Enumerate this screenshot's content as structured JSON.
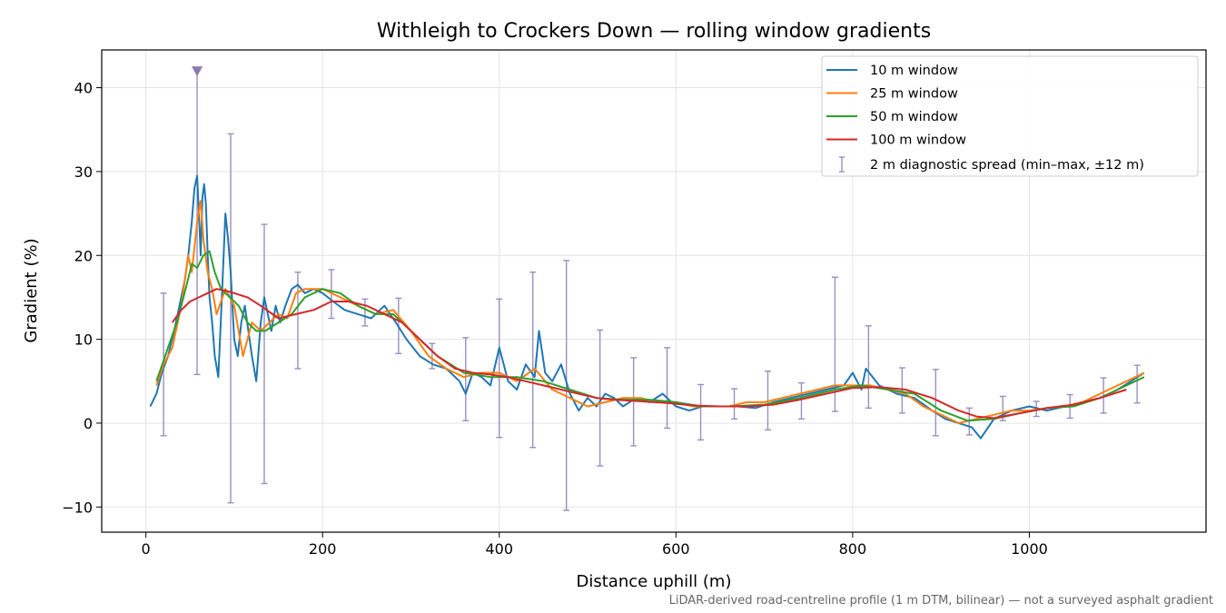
{
  "chart_data": {
    "type": "line",
    "title": "Withleigh to Crockers Down — rolling window gradients",
    "xlabel": "Distance uphill (m)",
    "ylabel": "Gradient (%)",
    "xlim": [
      -50,
      1200
    ],
    "ylim": [
      -13,
      44.5
    ],
    "xticks": [
      0,
      200,
      400,
      600,
      800,
      1000
    ],
    "yticks": [
      -10,
      0,
      10,
      20,
      30,
      40
    ],
    "xtick_labels": [
      "0",
      "200",
      "400",
      "600",
      "800",
      "1000"
    ],
    "ytick_labels": [
      "−10",
      "0",
      "10",
      "20",
      "30",
      "40"
    ],
    "grid": true,
    "legend_position": "top-right",
    "footnote": "LiDAR-derived road-centreline profile (1 m DTM, bilinear) — not a surveyed asphalt gradient",
    "colors": {
      "w10": "#1f77b4",
      "w25": "#ff7f0e",
      "w50": "#2ca02c",
      "w100": "#d62728",
      "errorbar": "#9a8fbf",
      "marker": "#8e7bb0"
    },
    "series": [
      {
        "name": "10 m window",
        "key": "w10",
        "x": [
          5,
          12,
          18,
          25,
          32,
          38,
          44,
          48,
          52,
          55,
          58,
          60,
          62,
          64,
          66,
          68,
          70,
          72,
          75,
          78,
          82,
          86,
          90,
          93,
          96,
          100,
          104,
          108,
          112,
          116,
          120,
          125,
          130,
          134,
          138,
          142,
          147,
          152,
          158,
          165,
          172,
          180,
          190,
          200,
          212,
          225,
          240,
          255,
          270,
          283,
          295,
          310,
          325,
          340,
          355,
          362,
          370,
          380,
          390,
          400,
          410,
          420,
          430,
          440,
          445,
          452,
          460,
          470,
          480,
          490,
          500,
          510,
          520,
          530,
          540,
          555,
          570,
          585,
          600,
          615,
          630,
          650,
          670,
          690,
          710,
          730,
          750,
          770,
          790,
          800,
          810,
          815,
          830,
          850,
          870,
          890,
          905,
          920,
          935,
          945,
          960,
          980,
          1000,
          1020,
          1040,
          1060,
          1080,
          1100,
          1115,
          1130
        ],
        "y": [
          2,
          3.5,
          6,
          8,
          11,
          14,
          17,
          20,
          24,
          28,
          29.5,
          25,
          20,
          27,
          28.5,
          26,
          20,
          15,
          12,
          8,
          5.5,
          15,
          25,
          22,
          18,
          10,
          8,
          12,
          14,
          11,
          8,
          5,
          12,
          15,
          13,
          11,
          14,
          12,
          14,
          16,
          16.5,
          15.5,
          16,
          15.5,
          14.5,
          13.5,
          13,
          12.5,
          14,
          12,
          10,
          8,
          7,
          6.5,
          5,
          3.5,
          6,
          5.5,
          4.5,
          9,
          5,
          4,
          7,
          5.5,
          11,
          6,
          5,
          7,
          3.5,
          1.5,
          3,
          2,
          3.5,
          3,
          2,
          3,
          2.5,
          3.5,
          2,
          1.5,
          2,
          2,
          2,
          1.8,
          2.5,
          3,
          3.5,
          4,
          4.5,
          6,
          4,
          6.5,
          4.5,
          3.5,
          3,
          1.5,
          0.5,
          0,
          -0.5,
          -1.8,
          0.5,
          1.5,
          2,
          1.5,
          2,
          2.5,
          3,
          4,
          5,
          6
        ]
      },
      {
        "name": "25 m window",
        "key": "w25",
        "x": [
          12,
          20,
          30,
          40,
          48,
          52,
          58,
          62,
          65,
          70,
          75,
          80,
          90,
          100,
          110,
          115,
          120,
          130,
          140,
          150,
          160,
          170,
          180,
          200,
          220,
          240,
          260,
          280,
          300,
          320,
          340,
          360,
          380,
          400,
          420,
          440,
          460,
          480,
          500,
          520,
          540,
          560,
          580,
          600,
          620,
          640,
          660,
          680,
          700,
          720,
          740,
          760,
          780,
          800,
          820,
          840,
          860,
          880,
          900,
          920,
          940,
          960,
          980,
          1000,
          1020,
          1040,
          1060,
          1080,
          1100,
          1120,
          1130
        ],
        "y": [
          4.5,
          7,
          9,
          14,
          20,
          18,
          24,
          26.5,
          22,
          18,
          16,
          13,
          16,
          14,
          8,
          10,
          12,
          11,
          12,
          13,
          12.5,
          15.5,
          16,
          16,
          15,
          14,
          13,
          13.5,
          11,
          8,
          6.5,
          5.5,
          6,
          6,
          5,
          6.5,
          4,
          3,
          2,
          2.5,
          3,
          3,
          2.5,
          2.5,
          2,
          2,
          2,
          2.5,
          2.5,
          3,
          3.5,
          4,
          4.5,
          4.5,
          4.5,
          4,
          3.5,
          2,
          1,
          0,
          0.5,
          1,
          1.5,
          1.5,
          1.8,
          2,
          2.5,
          3.5,
          4.5,
          5.5,
          6
        ]
      },
      {
        "name": "50 m window",
        "key": "w50",
        "x": [
          12,
          25,
          35,
          45,
          52,
          58,
          65,
          72,
          78,
          85,
          95,
          105,
          115,
          125,
          135,
          150,
          165,
          180,
          200,
          220,
          240,
          260,
          280,
          300,
          330,
          360,
          390,
          420,
          450,
          480,
          510,
          540,
          570,
          600,
          630,
          660,
          700,
          740,
          780,
          810,
          840,
          870,
          900,
          930,
          960,
          990,
          1020,
          1050,
          1080,
          1110,
          1130
        ],
        "y": [
          5,
          9,
          12,
          16,
          19,
          18.5,
          20,
          20.5,
          18,
          16,
          15,
          14,
          12,
          11,
          11,
          12,
          13,
          15,
          16,
          15.5,
          14,
          13,
          13,
          11,
          8,
          6,
          5.5,
          5.5,
          5,
          4,
          3,
          2.8,
          2.8,
          2.5,
          2,
          2,
          2.2,
          3,
          4,
          4.5,
          4,
          3.5,
          1.5,
          0.3,
          0.5,
          1.2,
          1.8,
          2,
          3,
          4.5,
          5.5
        ]
      },
      {
        "name": "100 m window",
        "key": "w100",
        "x": [
          30,
          40,
          50,
          60,
          70,
          80,
          90,
          100,
          115,
          130,
          150,
          170,
          190,
          210,
          230,
          250,
          270,
          290,
          310,
          330,
          350,
          370,
          390,
          410,
          430,
          450,
          470,
          490,
          510,
          530,
          560,
          590,
          620,
          650,
          680,
          710,
          740,
          770,
          800,
          830,
          860,
          890,
          920,
          940,
          960,
          990,
          1020,
          1050,
          1080,
          1110
        ],
        "y": [
          12,
          13.5,
          14.5,
          15,
          15.5,
          16,
          15.8,
          15.5,
          15,
          14,
          12.5,
          13,
          13.5,
          14.5,
          14.5,
          14,
          13,
          12,
          10,
          8,
          6.5,
          6,
          5.8,
          5.5,
          5,
          4.5,
          4,
          3.5,
          3,
          2.8,
          2.6,
          2.4,
          2.1,
          2,
          2,
          2.2,
          2.8,
          3.5,
          4.2,
          4.3,
          4,
          3,
          1.5,
          0.8,
          0.6,
          1.2,
          1.8,
          2.2,
          3,
          4
        ]
      }
    ],
    "error_bars": {
      "name": "2 m diagnostic spread (min–max, ±12 m)",
      "points": [
        {
          "x": 20,
          "low": -1.5,
          "high": 15.5
        },
        {
          "x": 58,
          "low": 5.8,
          "high": 42
        },
        {
          "x": 96,
          "low": -9.5,
          "high": 34.5
        },
        {
          "x": 134,
          "low": -7.2,
          "high": 23.7
        },
        {
          "x": 172,
          "low": 6.5,
          "high": 18
        },
        {
          "x": 210,
          "low": 12.5,
          "high": 18.3
        },
        {
          "x": 248,
          "low": 11.6,
          "high": 14.8
        },
        {
          "x": 286,
          "low": 8.3,
          "high": 14.9
        },
        {
          "x": 324,
          "low": 6.5,
          "high": 9.5
        },
        {
          "x": 362,
          "low": 0.3,
          "high": 10.2
        },
        {
          "x": 400,
          "low": -1.7,
          "high": 14.8
        },
        {
          "x": 438,
          "low": -2.9,
          "high": 18
        },
        {
          "x": 476,
          "low": -10.4,
          "high": 19.4
        },
        {
          "x": 514,
          "low": -5.1,
          "high": 11.1
        },
        {
          "x": 552,
          "low": -2.7,
          "high": 7.8
        },
        {
          "x": 590,
          "low": -0.6,
          "high": 9
        },
        {
          "x": 628,
          "low": -2,
          "high": 4.6
        },
        {
          "x": 666,
          "low": 0.5,
          "high": 4.1
        },
        {
          "x": 704,
          "low": -0.8,
          "high": 6.2
        },
        {
          "x": 742,
          "low": 0.5,
          "high": 4.8
        },
        {
          "x": 780,
          "low": 1.4,
          "high": 17.4
        },
        {
          "x": 818,
          "low": 1.8,
          "high": 11.6
        },
        {
          "x": 856,
          "low": 1.2,
          "high": 6.6
        },
        {
          "x": 894,
          "low": -1.5,
          "high": 6.4
        },
        {
          "x": 932,
          "low": -1.4,
          "high": 1.8
        },
        {
          "x": 970,
          "low": 0.3,
          "high": 3.2
        },
        {
          "x": 1008,
          "low": 0.8,
          "high": 2.6
        },
        {
          "x": 1046,
          "low": 0.6,
          "high": 3.4
        },
        {
          "x": 1084,
          "low": 1.2,
          "high": 5.4
        },
        {
          "x": 1122,
          "low": 2.4,
          "high": 6.9
        }
      ]
    },
    "marker": {
      "x": 58,
      "y": 42,
      "shape": "down-triangle"
    }
  }
}
